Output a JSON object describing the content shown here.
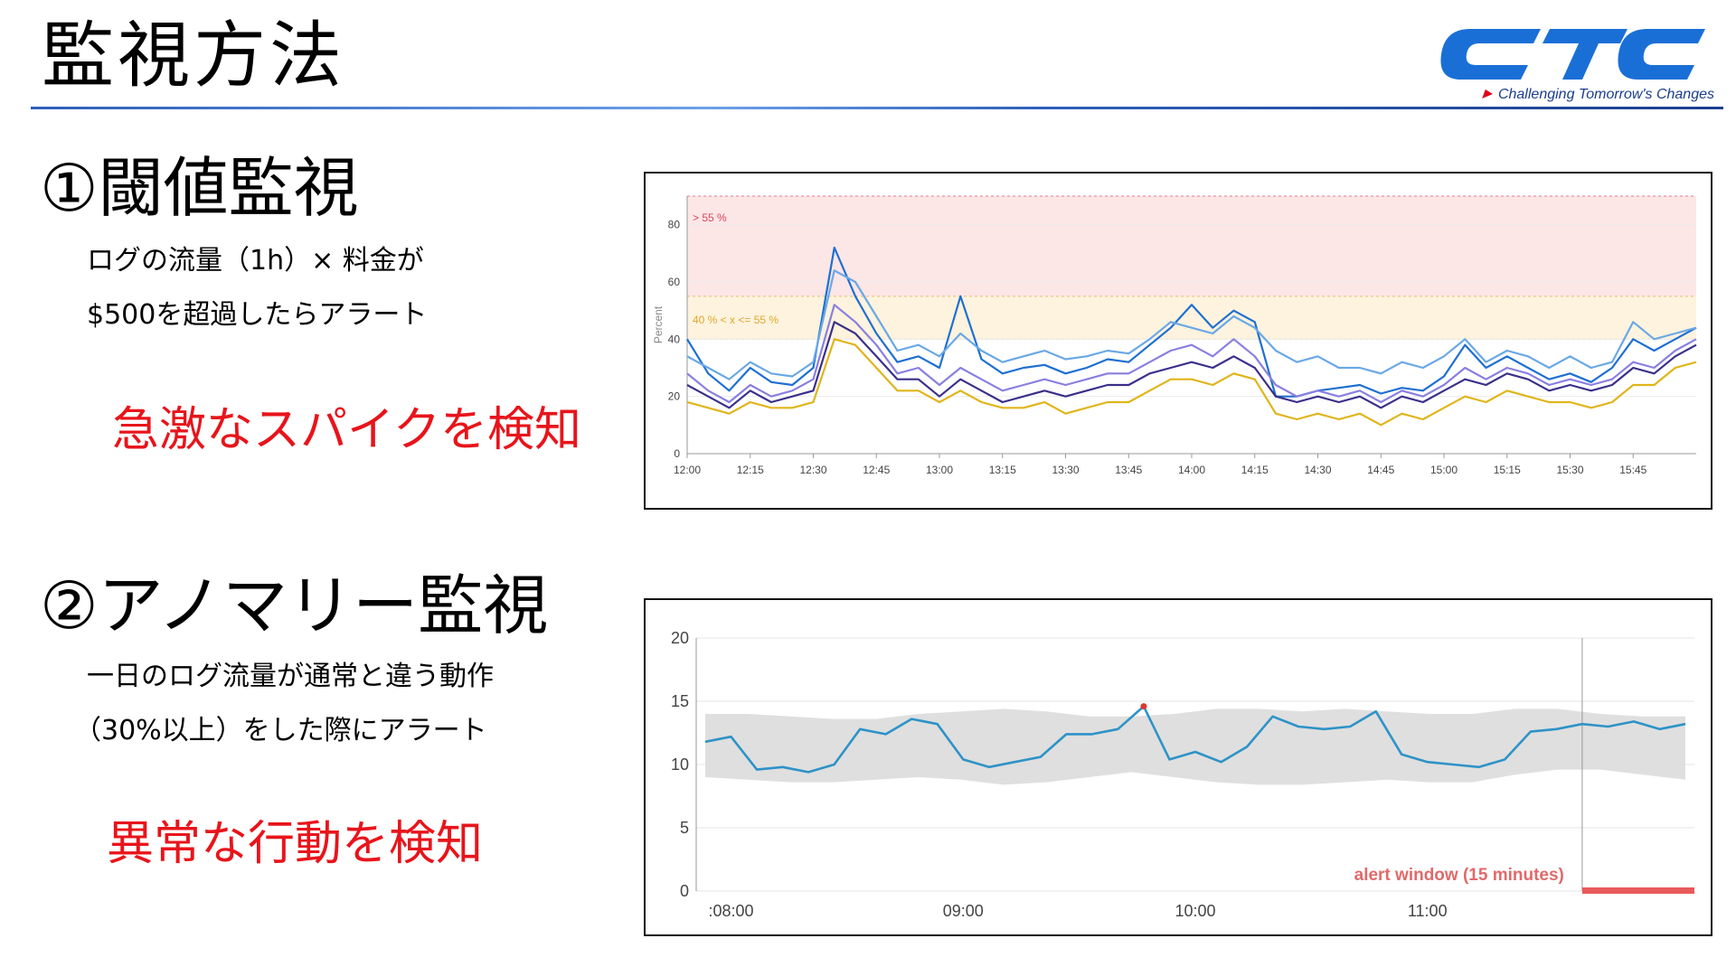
{
  "page_title": "監視方法",
  "logo": {
    "text": "CTC",
    "tagline": "Challenging Tomorrow's Changes",
    "color": "#1a6fd6"
  },
  "section1": {
    "heading": "①閾値監視",
    "desc_line1": "ログの流量（1h）× 料金が",
    "desc_line2": "$500を超過したらアラート",
    "highlight": "急激なスパイクを検知"
  },
  "section2": {
    "heading": "②アノマリー監視",
    "desc_line1": "一日のログ流量が通常と違う動作",
    "desc_line2": "（30%以上）をした際にアラート",
    "highlight": "異常な行動を検知"
  },
  "colors": {
    "highlight": "#e8141b",
    "danger_band": "#fde6e6",
    "warn_band": "#fdf3de",
    "anomaly_line": "#2e93c7",
    "band": "#dcdcdc",
    "alert": "#e85a5a"
  },
  "chart_data": [
    {
      "type": "line",
      "ylabel": "Percent",
      "ylim": [
        0,
        90
      ],
      "yticks": [
        "0",
        "20",
        "40",
        "60",
        "80"
      ],
      "xticks": [
        "12:00",
        "12:15",
        "12:30",
        "12:45",
        "13:00",
        "13:15",
        "13:30",
        "13:45",
        "14:00",
        "14:15",
        "14:30",
        "14:45",
        "15:00",
        "15:15",
        "15:30",
        "15:45"
      ],
      "thresholds": [
        {
          "label": "> 55 %",
          "from": 55,
          "to": 90,
          "color": "#fde6e6",
          "text_color": "#d9455f"
        },
        {
          "label": "40 % < x <= 55 %",
          "from": 40,
          "to": 55,
          "color": "#fdf3de",
          "text_color": "#e0a82e"
        }
      ],
      "x": [
        0,
        5,
        10,
        15,
        20,
        25,
        30,
        35,
        40,
        45,
        50,
        55,
        60,
        65,
        70,
        75,
        80,
        85,
        90,
        95,
        100,
        105,
        110,
        115,
        120,
        125,
        130,
        135,
        140,
        145,
        150,
        155,
        160,
        165,
        170,
        175,
        180,
        185,
        190,
        195,
        200,
        205,
        210,
        215,
        220,
        225,
        230,
        235,
        240
      ],
      "series": [
        {
          "color": "#1f6fd1",
          "values": [
            40,
            28,
            22,
            30,
            25,
            24,
            30,
            72,
            55,
            42,
            32,
            34,
            30,
            55,
            33,
            28,
            30,
            31,
            28,
            30,
            33,
            32,
            38,
            44,
            52,
            44,
            50,
            46,
            20,
            20,
            22,
            23,
            24,
            21,
            23,
            22,
            27,
            38,
            30,
            34,
            30,
            26,
            28,
            25,
            30,
            40,
            36,
            40,
            44
          ]
        },
        {
          "color": "#6aa8e6",
          "values": [
            34,
            30,
            26,
            32,
            28,
            27,
            32,
            64,
            60,
            48,
            36,
            38,
            34,
            42,
            36,
            32,
            34,
            36,
            33,
            34,
            36,
            35,
            40,
            46,
            44,
            42,
            48,
            44,
            36,
            32,
            34,
            30,
            30,
            28,
            32,
            30,
            34,
            40,
            32,
            36,
            34,
            30,
            34,
            30,
            32,
            46,
            40,
            42,
            44
          ]
        },
        {
          "color": "#8a7fe0",
          "values": [
            28,
            22,
            18,
            24,
            20,
            22,
            26,
            52,
            46,
            38,
            28,
            30,
            24,
            30,
            26,
            22,
            24,
            26,
            24,
            26,
            28,
            28,
            32,
            36,
            38,
            34,
            40,
            34,
            24,
            20,
            22,
            20,
            22,
            18,
            22,
            20,
            24,
            30,
            26,
            30,
            28,
            24,
            26,
            24,
            26,
            32,
            30,
            36,
            40
          ]
        },
        {
          "color": "#3a2f8a",
          "values": [
            24,
            20,
            16,
            22,
            18,
            20,
            22,
            46,
            42,
            34,
            26,
            26,
            20,
            26,
            22,
            18,
            20,
            22,
            20,
            22,
            24,
            24,
            28,
            30,
            32,
            30,
            34,
            30,
            20,
            18,
            20,
            18,
            20,
            16,
            20,
            18,
            22,
            26,
            24,
            28,
            26,
            22,
            24,
            22,
            24,
            30,
            28,
            34,
            38
          ]
        },
        {
          "color": "#e0b51a",
          "values": [
            18,
            16,
            14,
            18,
            16,
            16,
            18,
            40,
            38,
            30,
            22,
            22,
            18,
            22,
            18,
            16,
            16,
            18,
            14,
            16,
            18,
            18,
            22,
            26,
            26,
            24,
            28,
            26,
            14,
            12,
            14,
            12,
            14,
            10,
            14,
            12,
            16,
            20,
            18,
            22,
            20,
            18,
            18,
            16,
            18,
            24,
            24,
            30,
            32
          ]
        }
      ]
    },
    {
      "type": "line",
      "ylim": [
        0,
        20
      ],
      "yticks": [
        "0",
        "5",
        "10",
        "15",
        "20"
      ],
      "xticks": [
        ":08:00",
        "09:00",
        "10:00",
        "11:00"
      ],
      "annotation": "alert window (15 minutes)",
      "band_lower": [
        9.0,
        8.8,
        8.6,
        8.6,
        8.8,
        9.0,
        8.8,
        8.4,
        8.6,
        9.0,
        9.4,
        9.0,
        8.6,
        8.4,
        8.4,
        8.6,
        8.8,
        8.6,
        8.6,
        9.2,
        9.6,
        9.6,
        9.2,
        8.8
      ],
      "band_upper": [
        14.0,
        14.0,
        13.8,
        13.6,
        13.6,
        14.0,
        14.2,
        14.4,
        14.2,
        13.8,
        13.8,
        14.0,
        14.4,
        14.4,
        14.2,
        14.4,
        14.2,
        14.0,
        14.0,
        14.4,
        14.4,
        14.0,
        13.8,
        13.8
      ],
      "x": [
        0,
        6,
        12,
        18,
        24,
        30,
        36,
        42,
        48,
        54,
        60,
        66,
        72,
        78,
        84,
        90,
        96,
        102,
        108,
        114,
        120,
        126,
        132,
        138,
        144,
        150,
        156,
        162,
        168,
        174,
        180,
        186,
        192,
        198,
        204,
        210,
        216,
        222,
        228
      ],
      "series": [
        {
          "name": "",
          "color": "#2e93c7",
          "values": [
            11.8,
            12.2,
            9.6,
            9.8,
            9.4,
            10.0,
            12.8,
            12.4,
            13.6,
            13.2,
            10.4,
            9.8,
            10.2,
            10.6,
            12.4,
            12.4,
            12.8,
            14.6,
            10.4,
            11.0,
            10.2,
            11.4,
            13.8,
            13.0,
            12.8,
            13.0,
            14.2,
            10.8,
            10.2,
            10.0,
            9.8,
            10.4,
            12.6,
            12.8,
            13.2,
            13.0,
            13.4,
            12.8,
            13.2
          ]
        }
      ]
    }
  ]
}
